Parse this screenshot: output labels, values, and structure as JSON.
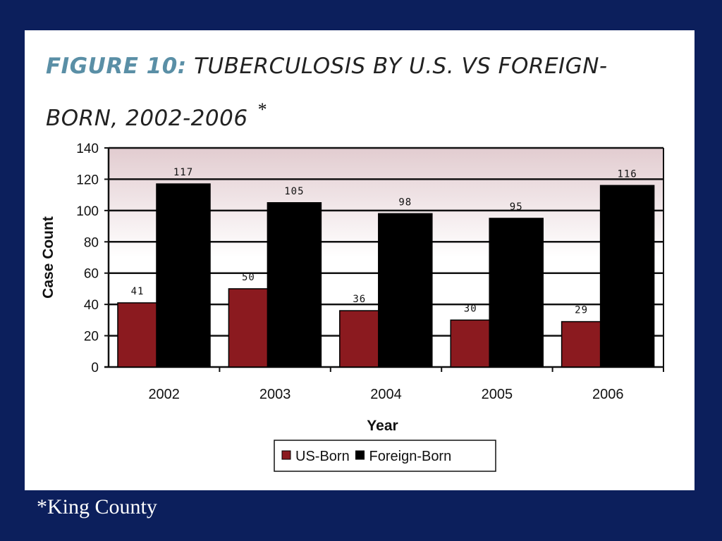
{
  "figure": {
    "prefix": "FIGURE 10:",
    "title": "TUBERCULOSIS BY U.S. VS FOREIGN-BORN, 2002-2006",
    "asterisk": "*"
  },
  "footnote": "*King County",
  "colors": {
    "background": "#0c1f5c",
    "us_born": "#8b1a1f",
    "foreign_born": "#000000"
  },
  "chart_data": {
    "type": "bar",
    "title": "",
    "xlabel": "Year",
    "ylabel": "Case Count",
    "categories": [
      "2002",
      "2003",
      "2004",
      "2005",
      "2006"
    ],
    "series": [
      {
        "name": "US-Born",
        "values": [
          41,
          50,
          36,
          30,
          29
        ],
        "color": "#8b1a1f"
      },
      {
        "name": "Foreign-Born",
        "values": [
          117,
          105,
          98,
          95,
          116
        ],
        "color": "#000000"
      }
    ],
    "ylim": [
      0,
      140
    ],
    "yticks": [
      0,
      20,
      40,
      60,
      80,
      100,
      120,
      140
    ],
    "data_labels": true,
    "grid": true,
    "legend": "bottom"
  }
}
